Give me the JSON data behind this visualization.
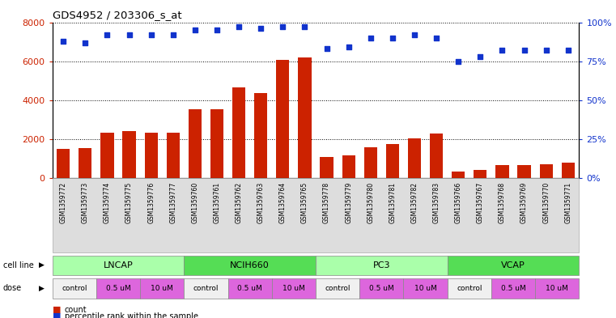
{
  "title": "GDS4952 / 203306_s_at",
  "samples": [
    "GSM1359772",
    "GSM1359773",
    "GSM1359774",
    "GSM1359775",
    "GSM1359776",
    "GSM1359777",
    "GSM1359760",
    "GSM1359761",
    "GSM1359762",
    "GSM1359763",
    "GSM1359764",
    "GSM1359765",
    "GSM1359778",
    "GSM1359779",
    "GSM1359780",
    "GSM1359781",
    "GSM1359782",
    "GSM1359783",
    "GSM1359766",
    "GSM1359767",
    "GSM1359768",
    "GSM1359769",
    "GSM1359770",
    "GSM1359771"
  ],
  "counts": [
    1500,
    1550,
    2350,
    2400,
    2350,
    2350,
    3550,
    3550,
    4650,
    4350,
    6050,
    6200,
    1100,
    1150,
    1600,
    1750,
    2050,
    2300,
    350,
    400,
    650,
    650,
    700,
    800
  ],
  "percentiles": [
    88,
    87,
    92,
    92,
    92,
    92,
    95,
    95,
    97,
    96,
    97,
    97,
    83,
    84,
    90,
    90,
    92,
    90,
    75,
    78,
    82,
    82,
    82,
    82
  ],
  "cell_lines": [
    {
      "name": "LNCAP",
      "start": 0,
      "end": 6,
      "color": "#aaffaa"
    },
    {
      "name": "NCIH660",
      "start": 6,
      "end": 12,
      "color": "#55dd55"
    },
    {
      "name": "PC3",
      "start": 12,
      "end": 18,
      "color": "#aaffaa"
    },
    {
      "name": "VCAP",
      "start": 18,
      "end": 24,
      "color": "#55dd55"
    }
  ],
  "dose_groups": [
    {
      "label": "control",
      "start": 0,
      "end": 2,
      "color": "#f0f0f0"
    },
    {
      "label": "0.5 uM",
      "start": 2,
      "end": 4,
      "color": "#dd66dd"
    },
    {
      "label": "10 uM",
      "start": 4,
      "end": 6,
      "color": "#dd66dd"
    },
    {
      "label": "control",
      "start": 6,
      "end": 8,
      "color": "#f0f0f0"
    },
    {
      "label": "0.5 uM",
      "start": 8,
      "end": 10,
      "color": "#dd66dd"
    },
    {
      "label": "10 uM",
      "start": 10,
      "end": 12,
      "color": "#dd66dd"
    },
    {
      "label": "control",
      "start": 12,
      "end": 14,
      "color": "#f0f0f0"
    },
    {
      "label": "0.5 uM",
      "start": 14,
      "end": 16,
      "color": "#dd66dd"
    },
    {
      "label": "10 uM",
      "start": 16,
      "end": 18,
      "color": "#dd66dd"
    },
    {
      "label": "control",
      "start": 18,
      "end": 20,
      "color": "#f0f0f0"
    },
    {
      "label": "0.5 uM",
      "start": 20,
      "end": 22,
      "color": "#dd66dd"
    },
    {
      "label": "10 uM",
      "start": 22,
      "end": 24,
      "color": "#dd66dd"
    }
  ],
  "bar_color": "#CC2200",
  "dot_color": "#1133CC",
  "ylim_left": [
    0,
    8000
  ],
  "ylim_right": [
    0,
    100
  ],
  "yticks_left": [
    0,
    2000,
    4000,
    6000,
    8000
  ],
  "yticks_right": [
    0,
    25,
    50,
    75,
    100
  ],
  "yticklabels_right": [
    "0%",
    "25%",
    "50%",
    "75%",
    "100%"
  ],
  "bg_color": "#ffffff",
  "tick_bg_color": "#dddddd"
}
